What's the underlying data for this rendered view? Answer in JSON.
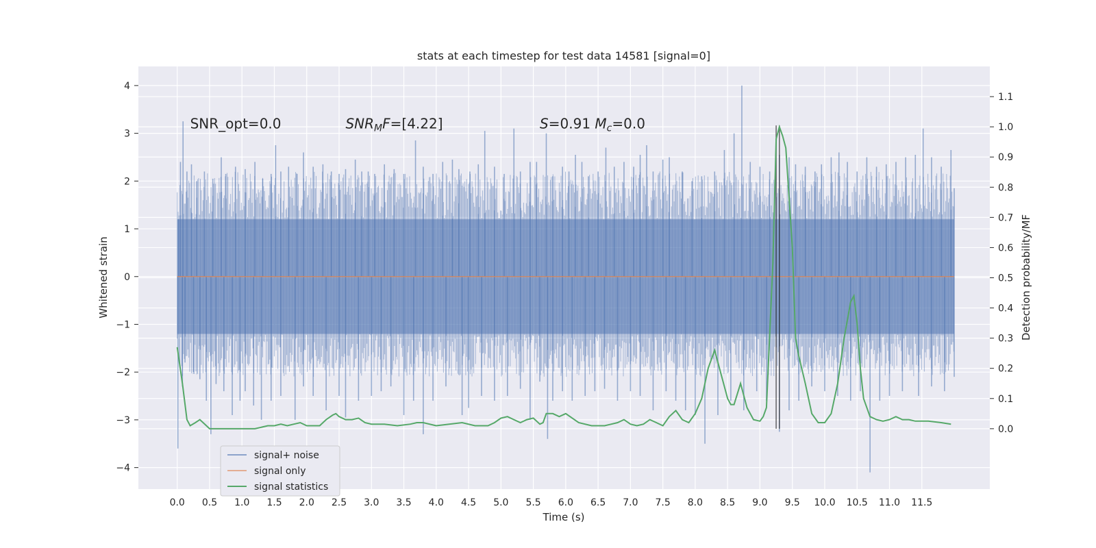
{
  "chart_data": {
    "type": "line",
    "title": "stats at each timestep for test data 14581 [signal=0]",
    "xlabel": "Time (s)",
    "ylabel": "Whitened strain",
    "ylabel_right": "Detection probability/MF",
    "xlim": [
      -0.6,
      12.55
    ],
    "ylim": [
      -4.45,
      4.4
    ],
    "ylim_right": [
      -0.2,
      1.2
    ],
    "xticks": [
      0.0,
      0.5,
      1.0,
      1.5,
      2.0,
      2.5,
      3.0,
      3.5,
      4.0,
      4.5,
      5.0,
      5.5,
      6.0,
      6.5,
      7.0,
      7.5,
      8.0,
      8.5,
      9.0,
      9.5,
      10.0,
      10.5,
      11.0,
      11.5
    ],
    "xtick_labels": [
      "0.0",
      "0.5",
      "1.0",
      "1.5",
      "2.0",
      "2.5",
      "3.0",
      "3.5",
      "4.0",
      "4.5",
      "5.0",
      "5.5",
      "6.0",
      "6.5",
      "7.0",
      "7.5",
      "8.0",
      "8.5",
      "9.0",
      "9.5",
      "10.0",
      "10.5",
      "11.0",
      "11.5"
    ],
    "yticks": [
      -4,
      -3,
      -2,
      -1,
      0,
      1,
      2,
      3,
      4
    ],
    "ytick_labels": [
      "−4",
      "−3",
      "−2",
      "−1",
      "0",
      "1",
      "2",
      "3",
      "4"
    ],
    "yticks_right": [
      0.0,
      0.1,
      0.2,
      0.3,
      0.4,
      0.5,
      0.6,
      0.7,
      0.8,
      0.9,
      1.0,
      1.1
    ],
    "ytick_labels_right": [
      "0.0",
      "0.1",
      "0.2",
      "0.3",
      "0.4",
      "0.5",
      "0.6",
      "0.7",
      "0.8",
      "0.9",
      "1.0",
      "1.1"
    ],
    "grid": true,
    "legend_position": "bottom-left",
    "annotations": [
      {
        "label": "SNR_opt=0.0",
        "x": 0.2,
        "y": 3.2
      },
      {
        "label": "SNR_MF=[4.22]",
        "x": 2.6,
        "y": 3.2
      },
      {
        "label": "S=0.91   M_c=0.0",
        "x": 5.6,
        "y": 3.2
      }
    ],
    "series": [
      {
        "name": "signal+ noise",
        "color": "#4c72b0",
        "axis": "left",
        "x_range": [
          0.0,
          12.0
        ],
        "band_upper": 1.2,
        "band_lower": -1.2,
        "spikes_up": [
          [
            0.02,
            1.2
          ],
          [
            0.05,
            2.4
          ],
          [
            0.09,
            3.25
          ],
          [
            0.15,
            2.2
          ],
          [
            0.22,
            2.35
          ],
          [
            0.3,
            2.0
          ],
          [
            0.42,
            2.2
          ],
          [
            0.55,
            2.05
          ],
          [
            0.68,
            2.5
          ],
          [
            0.75,
            2.15
          ],
          [
            0.9,
            2.3
          ],
          [
            1.05,
            2.25
          ],
          [
            1.2,
            2.4
          ],
          [
            1.32,
            2.05
          ],
          [
            1.45,
            2.15
          ],
          [
            1.52,
            2.75
          ],
          [
            1.6,
            2.2
          ],
          [
            1.72,
            2.3
          ],
          [
            1.85,
            2.15
          ],
          [
            1.95,
            2.6
          ],
          [
            2.1,
            2.3
          ],
          [
            2.25,
            2.35
          ],
          [
            2.38,
            2.2
          ],
          [
            2.5,
            2.15
          ],
          [
            2.6,
            2.25
          ],
          [
            2.75,
            2.45
          ],
          [
            2.85,
            2.2
          ],
          [
            2.95,
            2.2
          ],
          [
            3.05,
            2.15
          ],
          [
            3.2,
            2.35
          ],
          [
            3.35,
            2.25
          ],
          [
            3.5,
            2.15
          ],
          [
            3.68,
            2.85
          ],
          [
            3.8,
            2.3
          ],
          [
            3.95,
            2.15
          ],
          [
            4.1,
            2.4
          ],
          [
            4.25,
            2.45
          ],
          [
            4.35,
            2.25
          ],
          [
            4.52,
            2.2
          ],
          [
            4.65,
            2.35
          ],
          [
            4.75,
            3.05
          ],
          [
            4.9,
            2.3
          ],
          [
            5.05,
            2.15
          ],
          [
            5.2,
            3.1
          ],
          [
            5.3,
            2.2
          ],
          [
            5.45,
            2.4
          ],
          [
            5.55,
            2.4
          ],
          [
            5.7,
            3.0
          ],
          [
            5.8,
            2.1
          ],
          [
            5.95,
            2.3
          ],
          [
            6.05,
            2.2
          ],
          [
            6.15,
            2.55
          ],
          [
            6.25,
            2.4
          ],
          [
            6.35,
            2.1
          ],
          [
            6.5,
            2.2
          ],
          [
            6.62,
            2.7
          ],
          [
            6.75,
            2.3
          ],
          [
            6.9,
            2.4
          ],
          [
            7.05,
            2.3
          ],
          [
            7.15,
            2.55
          ],
          [
            7.25,
            2.75
          ],
          [
            7.35,
            2.2
          ],
          [
            7.5,
            2.45
          ],
          [
            7.6,
            2.5
          ],
          [
            7.8,
            2.2
          ],
          [
            7.95,
            2.0
          ],
          [
            8.1,
            2.1
          ],
          [
            8.3,
            2.2
          ],
          [
            8.45,
            2.65
          ],
          [
            8.6,
            3.0
          ],
          [
            8.72,
            4.0
          ],
          [
            8.85,
            2.4
          ],
          [
            9.0,
            2.3
          ],
          [
            9.15,
            2.2
          ],
          [
            9.3,
            2.55
          ],
          [
            9.45,
            2.5
          ],
          [
            9.55,
            2.35
          ],
          [
            9.7,
            2.3
          ],
          [
            9.85,
            2.2
          ],
          [
            9.95,
            2.35
          ],
          [
            10.1,
            2.5
          ],
          [
            10.22,
            2.6
          ],
          [
            10.35,
            2.4
          ],
          [
            10.5,
            2.2
          ],
          [
            10.65,
            2.5
          ],
          [
            10.8,
            2.3
          ],
          [
            10.95,
            2.35
          ],
          [
            11.1,
            2.4
          ],
          [
            11.25,
            2.5
          ],
          [
            11.4,
            2.55
          ],
          [
            11.52,
            3.1
          ],
          [
            11.65,
            2.5
          ],
          [
            11.8,
            2.3
          ],
          [
            11.95,
            2.65
          ],
          [
            12.0,
            1.85
          ]
        ],
        "spikes_down": [
          [
            0.01,
            -3.6
          ],
          [
            0.08,
            -2.3
          ],
          [
            0.12,
            -1.8
          ],
          [
            0.25,
            -2.0
          ],
          [
            0.35,
            -2.15
          ],
          [
            0.45,
            -2.6
          ],
          [
            0.52,
            -3.3
          ],
          [
            0.6,
            -2.25
          ],
          [
            0.72,
            -2.4
          ],
          [
            0.85,
            -2.9
          ],
          [
            0.97,
            -2.6
          ],
          [
            1.05,
            -2.4
          ],
          [
            1.18,
            -2.7
          ],
          [
            1.3,
            -3.0
          ],
          [
            1.45,
            -2.6
          ],
          [
            1.6,
            -2.5
          ],
          [
            1.82,
            -3.0
          ],
          [
            1.95,
            -2.3
          ],
          [
            2.1,
            -2.5
          ],
          [
            2.3,
            -2.8
          ],
          [
            2.5,
            -2.5
          ],
          [
            2.6,
            -2.95
          ],
          [
            2.8,
            -2.6
          ],
          [
            3.0,
            -2.5
          ],
          [
            3.15,
            -2.4
          ],
          [
            3.3,
            -2.3
          ],
          [
            3.5,
            -2.9
          ],
          [
            3.65,
            -2.6
          ],
          [
            3.8,
            -3.3
          ],
          [
            3.95,
            -2.6
          ],
          [
            4.15,
            -2.3
          ],
          [
            4.4,
            -2.9
          ],
          [
            4.5,
            -2.75
          ],
          [
            4.7,
            -2.5
          ],
          [
            4.9,
            -2.6
          ],
          [
            5.1,
            -2.5
          ],
          [
            5.3,
            -2.35
          ],
          [
            5.45,
            -3.0
          ],
          [
            5.6,
            -2.2
          ],
          [
            5.72,
            -3.4
          ],
          [
            5.8,
            -2.6
          ],
          [
            5.95,
            -2.4
          ],
          [
            6.1,
            -2.6
          ],
          [
            6.3,
            -2.5
          ],
          [
            6.45,
            -2.4
          ],
          [
            6.6,
            -2.35
          ],
          [
            6.8,
            -2.6
          ],
          [
            7.0,
            -2.4
          ],
          [
            7.15,
            -2.5
          ],
          [
            7.35,
            -2.8
          ],
          [
            7.55,
            -2.4
          ],
          [
            7.7,
            -2.6
          ],
          [
            7.85,
            -2.8
          ],
          [
            8.0,
            -2.9
          ],
          [
            8.15,
            -3.5
          ],
          [
            8.35,
            -2.9
          ],
          [
            8.55,
            -2.6
          ],
          [
            8.75,
            -2.8
          ],
          [
            8.95,
            -2.4
          ],
          [
            9.1,
            -2.6
          ],
          [
            9.3,
            -3.25
          ],
          [
            9.45,
            -2.8
          ],
          [
            9.6,
            -2.6
          ],
          [
            9.8,
            -2.3
          ],
          [
            10.0,
            -2.4
          ],
          [
            10.2,
            -2.5
          ],
          [
            10.4,
            -2.6
          ],
          [
            10.55,
            -2.4
          ],
          [
            10.7,
            -4.1
          ],
          [
            10.85,
            -2.6
          ],
          [
            11.0,
            -2.5
          ],
          [
            11.2,
            -2.4
          ],
          [
            11.45,
            -2.5
          ],
          [
            11.65,
            -2.3
          ],
          [
            11.85,
            -2.4
          ],
          [
            12.0,
            -2.1
          ]
        ]
      },
      {
        "name": "signal only",
        "color": "#dd8452",
        "axis": "left",
        "x": [
          0.0,
          12.0
        ],
        "y": [
          0.0,
          0.0
        ]
      },
      {
        "name": "signal statistics",
        "color": "#55a868",
        "axis": "right",
        "x": [
          0.0,
          0.08,
          0.15,
          0.2,
          0.28,
          0.35,
          0.4,
          0.5,
          0.6,
          0.8,
          1.0,
          1.2,
          1.4,
          1.5,
          1.6,
          1.7,
          1.8,
          1.9,
          2.0,
          2.2,
          2.3,
          2.4,
          2.45,
          2.5,
          2.6,
          2.7,
          2.8,
          2.9,
          3.0,
          3.2,
          3.4,
          3.6,
          3.7,
          3.8,
          4.0,
          4.2,
          4.4,
          4.6,
          4.8,
          4.9,
          5.0,
          5.1,
          5.2,
          5.3,
          5.4,
          5.5,
          5.6,
          5.65,
          5.7,
          5.8,
          5.9,
          6.0,
          6.2,
          6.4,
          6.6,
          6.8,
          6.9,
          7.0,
          7.1,
          7.2,
          7.3,
          7.4,
          7.5,
          7.6,
          7.7,
          7.8,
          7.9,
          8.0,
          8.1,
          8.2,
          8.3,
          8.4,
          8.5,
          8.55,
          8.6,
          8.7,
          8.8,
          8.9,
          9.0,
          9.05,
          9.1,
          9.2,
          9.25,
          9.3,
          9.35,
          9.4,
          9.5,
          9.55,
          9.6,
          9.7,
          9.8,
          9.9,
          10.0,
          10.1,
          10.2,
          10.3,
          10.4,
          10.45,
          10.5,
          10.55,
          10.6,
          10.7,
          10.8,
          10.9,
          11.0,
          11.1,
          11.2,
          11.3,
          11.4,
          11.6,
          11.8,
          11.95
        ],
        "y": [
          0.27,
          0.15,
          0.03,
          0.01,
          0.02,
          0.03,
          0.02,
          0.0,
          0.0,
          0.0,
          0.0,
          0.0,
          0.01,
          0.01,
          0.015,
          0.01,
          0.015,
          0.02,
          0.01,
          0.01,
          0.03,
          0.045,
          0.05,
          0.04,
          0.03,
          0.03,
          0.035,
          0.02,
          0.015,
          0.015,
          0.01,
          0.015,
          0.02,
          0.02,
          0.01,
          0.015,
          0.02,
          0.01,
          0.01,
          0.02,
          0.035,
          0.04,
          0.03,
          0.02,
          0.03,
          0.035,
          0.015,
          0.02,
          0.05,
          0.05,
          0.04,
          0.05,
          0.02,
          0.01,
          0.01,
          0.02,
          0.03,
          0.015,
          0.01,
          0.015,
          0.03,
          0.02,
          0.01,
          0.04,
          0.06,
          0.03,
          0.02,
          0.05,
          0.1,
          0.2,
          0.26,
          0.18,
          0.1,
          0.08,
          0.08,
          0.15,
          0.07,
          0.03,
          0.025,
          0.04,
          0.07,
          0.55,
          0.96,
          1.0,
          0.97,
          0.93,
          0.6,
          0.3,
          0.24,
          0.15,
          0.05,
          0.02,
          0.02,
          0.05,
          0.15,
          0.3,
          0.42,
          0.44,
          0.35,
          0.2,
          0.1,
          0.04,
          0.03,
          0.025,
          0.03,
          0.04,
          0.03,
          0.03,
          0.025,
          0.025,
          0.02,
          0.015
        ]
      }
    ],
    "vlines": [
      {
        "x": 9.25,
        "y_range": [
          0.0,
          1.0
        ],
        "color": "#262626"
      },
      {
        "x": 9.3,
        "y_range": [
          0.0,
          1.0
        ],
        "color": "#262626"
      }
    ]
  }
}
